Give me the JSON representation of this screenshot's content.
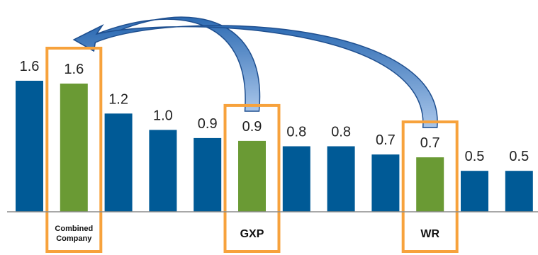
{
  "chart_data": {
    "type": "bar",
    "title": "",
    "xlabel": "",
    "ylabel": "",
    "ylim": [
      0,
      1.6
    ],
    "grid": false,
    "legend": "none",
    "categories": [
      "",
      "Combined Company",
      "",
      "",
      "",
      "GXP",
      "",
      "",
      "",
      "WR",
      "",
      ""
    ],
    "values": [
      1.6,
      1.6,
      1.2,
      1.0,
      0.9,
      0.9,
      0.8,
      0.8,
      0.7,
      0.7,
      0.5,
      0.5
    ],
    "value_labels": [
      "1.6",
      "1.6",
      "1.2",
      "1.0",
      "0.9",
      "0.9",
      "0.8",
      "0.8",
      "0.7",
      "0.7",
      "0.5",
      "0.5"
    ],
    "highlighted": [
      false,
      true,
      false,
      false,
      false,
      true,
      false,
      false,
      false,
      true,
      false,
      false
    ],
    "annotations": [
      {
        "type": "arrow",
        "from": "GXP",
        "to": "Combined Company"
      },
      {
        "type": "arrow",
        "from": "WR",
        "to": "Combined Company"
      }
    ]
  },
  "colors": {
    "bar": "#005a96",
    "highlight_bar": "#6a9a34",
    "highlight_box": "#f7a23c",
    "arrow_fill": "#6f9bd1",
    "arrow_stroke": "#1f4f8f",
    "baseline": "#8c8c8c"
  }
}
